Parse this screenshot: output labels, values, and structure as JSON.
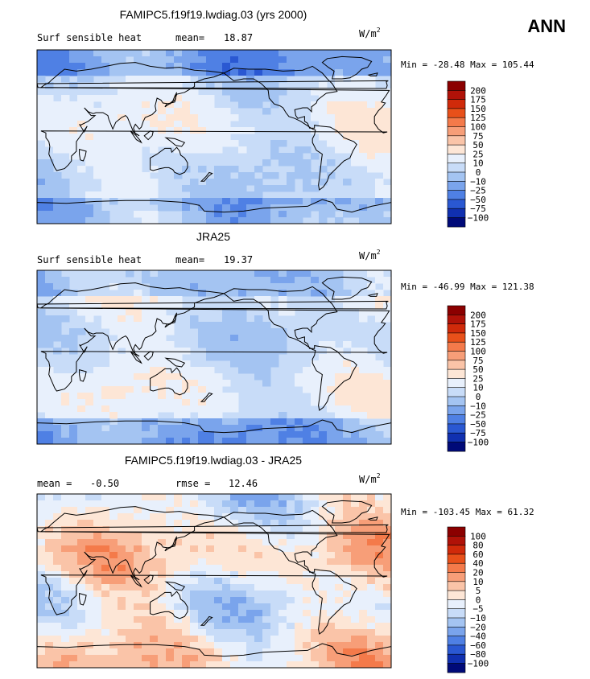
{
  "season_label": "ANN",
  "chart_data": [
    {
      "type": "heatmap",
      "title": "FAMIPC5.f19f19.lwdiag.03 (yrs 2000)",
      "variable_label": "Surf sensible heat",
      "stats": [
        {
          "label": "mean=",
          "value": "18.87"
        }
      ],
      "units": {
        "base": "W/m",
        "exponent": "2"
      },
      "min_max": "Min = -28.48 Max = 105.44",
      "x_range": [
        0,
        360
      ],
      "y_range": [
        -90,
        90
      ],
      "colorbar": {
        "levels": [
          "200",
          "175",
          "150",
          "125",
          "100",
          "75",
          "50",
          "25",
          "10",
          "0",
          "-10",
          "-25",
          "-50",
          "-75",
          "-100"
        ],
        "colors": [
          "#8b0000",
          "#b01208",
          "#d02a0a",
          "#e8501a",
          "#f47a4a",
          "#f79e78",
          "#fac4a8",
          "#fde6d6",
          "#e8f0fc",
          "#c8dcf8",
          "#a4c4f2",
          "#7aa4ec",
          "#4f80e4",
          "#2a58d2",
          "#1030b0",
          "#000a78"
        ]
      }
    },
    {
      "type": "heatmap",
      "title": "JRA25",
      "variable_label": "Surf sensible heat",
      "stats": [
        {
          "label": "mean=",
          "value": "19.37"
        }
      ],
      "units": {
        "base": "W/m",
        "exponent": "2"
      },
      "min_max": "Min = -46.99 Max = 121.38",
      "x_range": [
        0,
        360
      ],
      "y_range": [
        -90,
        90
      ],
      "colorbar": {
        "levels": [
          "200",
          "175",
          "150",
          "125",
          "100",
          "75",
          "50",
          "25",
          "10",
          "0",
          "-10",
          "-25",
          "-50",
          "-75",
          "-100"
        ],
        "colors": [
          "#8b0000",
          "#b01208",
          "#d02a0a",
          "#e8501a",
          "#f47a4a",
          "#f79e78",
          "#fac4a8",
          "#fde6d6",
          "#e8f0fc",
          "#c8dcf8",
          "#a4c4f2",
          "#7aa4ec",
          "#4f80e4",
          "#2a58d2",
          "#1030b0",
          "#000a78"
        ]
      }
    },
    {
      "type": "heatmap",
      "title": "FAMIPC5.f19f19.lwdiag.03 - JRA25",
      "variable_label": "",
      "stats": [
        {
          "label": "mean =",
          "value": "-0.50"
        },
        {
          "label": "rmse =",
          "value": "12.46"
        }
      ],
      "units": {
        "base": "W/m",
        "exponent": "2"
      },
      "min_max": "Min = -103.45 Max = 61.32",
      "x_range": [
        0,
        360
      ],
      "y_range": [
        -90,
        90
      ],
      "colorbar": {
        "levels": [
          "100",
          "80",
          "60",
          "40",
          "20",
          "10",
          "5",
          "0",
          "-5",
          "-10",
          "-20",
          "-40",
          "-60",
          "-80",
          "-100"
        ],
        "colors": [
          "#8b0000",
          "#b01208",
          "#d02a0a",
          "#e8501a",
          "#f47a4a",
          "#f79e78",
          "#fac4a8",
          "#fde6d6",
          "#e8f0fc",
          "#c8dcf8",
          "#a4c4f2",
          "#7aa4ec",
          "#4f80e4",
          "#2a58d2",
          "#1030b0",
          "#000a78"
        ]
      }
    }
  ]
}
